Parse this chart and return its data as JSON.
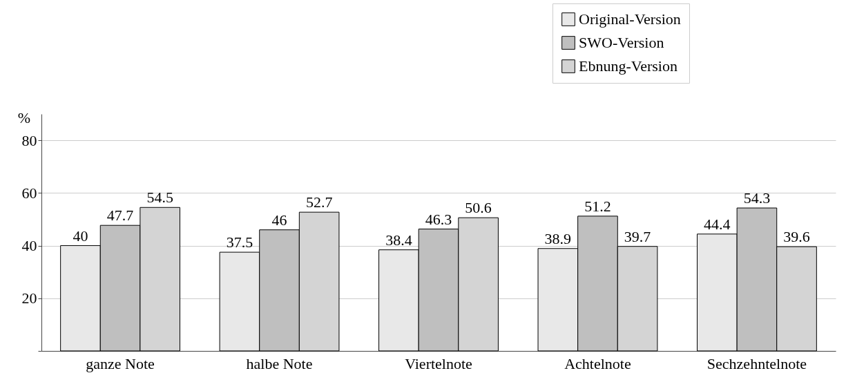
{
  "chart_data": {
    "type": "bar",
    "ylabel": "%",
    "categories": [
      "ganze Note",
      "halbe Note",
      "Viertelnote",
      "Achtelnote",
      "Sechzehntelnote"
    ],
    "series": [
      {
        "name": "Original-Version",
        "color": "#e8e8e8",
        "values": [
          40,
          37.5,
          38.4,
          38.9,
          44.4
        ]
      },
      {
        "name": "SWO-Version",
        "color": "#bfbfbf",
        "values": [
          47.7,
          46,
          46.3,
          51.2,
          54.3
        ]
      },
      {
        "name": "Ebnung-Version",
        "color": "#d4d4d4",
        "values": [
          54.5,
          52.7,
          50.6,
          39.7,
          39.6
        ]
      }
    ],
    "ylim": [
      0,
      90
    ],
    "yticks": [
      {
        "value": 0,
        "label": null
      },
      20,
      40,
      60,
      80
    ],
    "grid": "y",
    "legend": "top right",
    "data_labels": true
  }
}
